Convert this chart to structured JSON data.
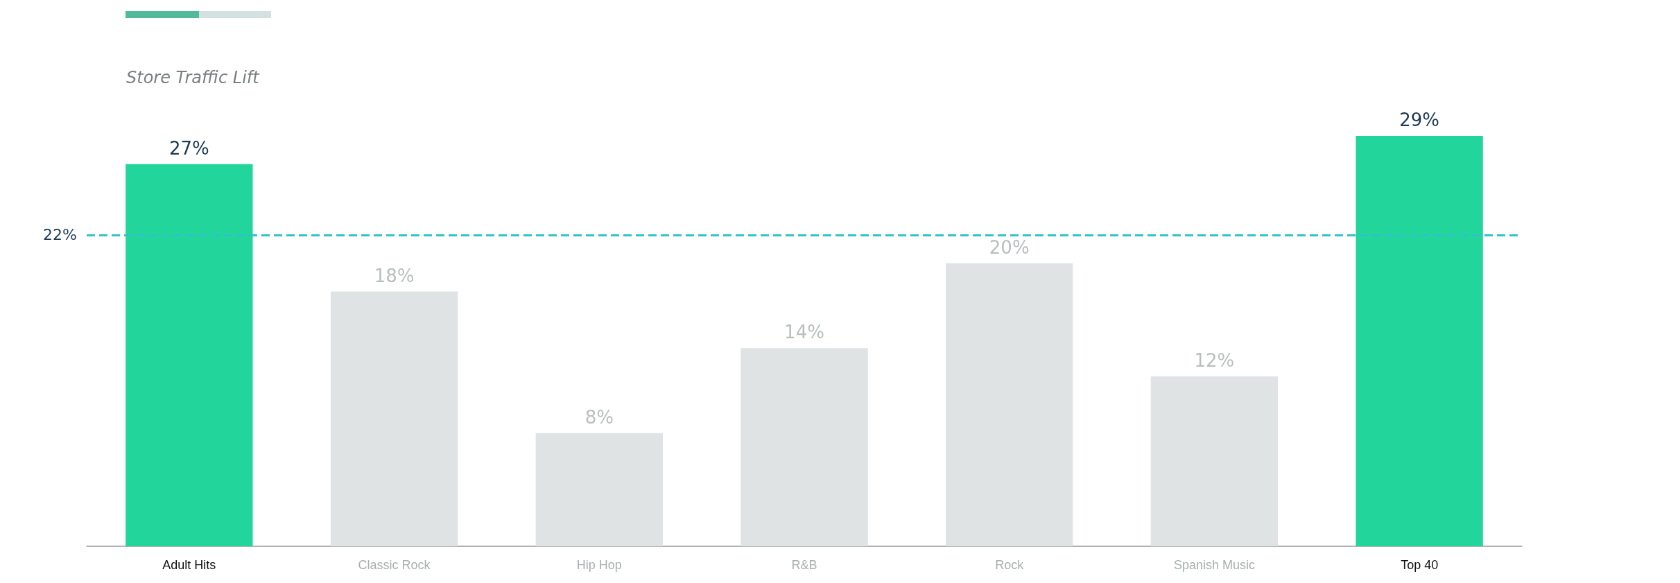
{
  "chart_data": {
    "type": "bar",
    "title": "Store Traffic Lift",
    "categories": [
      "Adult Hits",
      "Classic Rock",
      "Hip Hop",
      "R&B",
      "Rock",
      "Spanish Music",
      "Top 40"
    ],
    "values": [
      27,
      18,
      8,
      14,
      20,
      12,
      29
    ],
    "value_labels": [
      "27%",
      "18%",
      "8%",
      "14%",
      "20%",
      "12%",
      "29%"
    ],
    "colors": [
      "#22d69b",
      "#dfe3e3",
      "#dfe3e3",
      "#dfe3e3",
      "#dfe3e3",
      "#dfe3e3",
      "#22d69b"
    ],
    "ref_lines": [
      {
        "axis": "y",
        "value": 22,
        "label": "22%",
        "color": "#2ec4c6",
        "line_style": "dashed"
      }
    ],
    "grid": false
  }
}
